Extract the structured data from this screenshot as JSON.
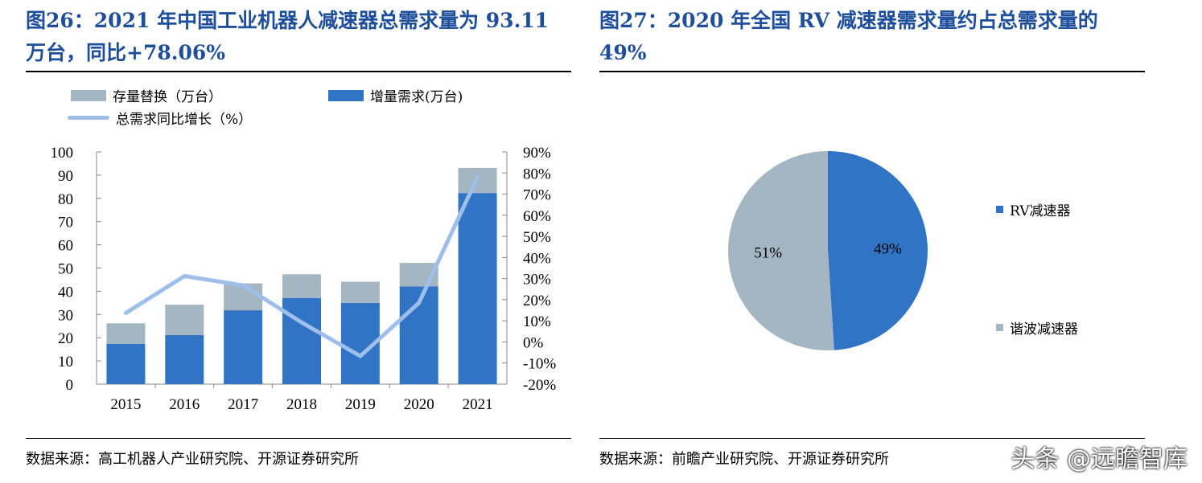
{
  "left": {
    "title": "图26：2021 年中国工业机器人减速器总需求量为 93.11 万台，同比+78.06%",
    "source": "数据来源：高工机器人产业研究院、开源证券研究所"
  },
  "right": {
    "title": "图27：2020 年全国 RV 减速器需求量约占总需求量的 49%",
    "source": "数据来源：前瞻产业研究院、开源证券研究所"
  },
  "watermark": "头条 @远瞻智库",
  "chart_data": [
    {
      "type": "bar",
      "stacked": true,
      "categories": [
        "2015",
        "2016",
        "2017",
        "2018",
        "2019",
        "2020",
        "2021"
      ],
      "series": [
        {
          "name": "增量需求(万台)",
          "values": [
            17.3,
            21.1,
            31.8,
            37.1,
            35.0,
            42.1,
            82.3
          ],
          "color": "#3173c4",
          "axis": "left"
        },
        {
          "name": "存量替换（万台）",
          "values": [
            8.9,
            13.1,
            11.6,
            10.2,
            9.1,
            10.1,
            10.81
          ],
          "color": "#a3b6c2",
          "axis": "left"
        },
        {
          "name": "总需求同比增长（%）",
          "type": "line",
          "values": [
            13.7,
            31.2,
            26.8,
            9.2,
            -6.7,
            18.5,
            78.06
          ],
          "color": "#9dbfea",
          "axis": "right"
        }
      ],
      "ylim": [
        0,
        100
      ],
      "yticks": [
        "0",
        "10",
        "20",
        "30",
        "40",
        "50",
        "60",
        "70",
        "80",
        "90",
        "100"
      ],
      "y2lim": [
        -20,
        90
      ],
      "y2ticks": [
        "-20%",
        "-10%",
        "0%",
        "10%",
        "20%",
        "30%",
        "40%",
        "50%",
        "60%",
        "70%",
        "80%",
        "90%"
      ],
      "legend": "top",
      "grid": false
    },
    {
      "type": "pie",
      "slices": [
        {
          "name": "RV减速器",
          "value": 49,
          "label": "49%",
          "color": "#3173c4"
        },
        {
          "name": "谐波减速器",
          "value": 51,
          "label": "51%",
          "color": "#a3b6c2"
        }
      ],
      "legend": "right"
    }
  ]
}
